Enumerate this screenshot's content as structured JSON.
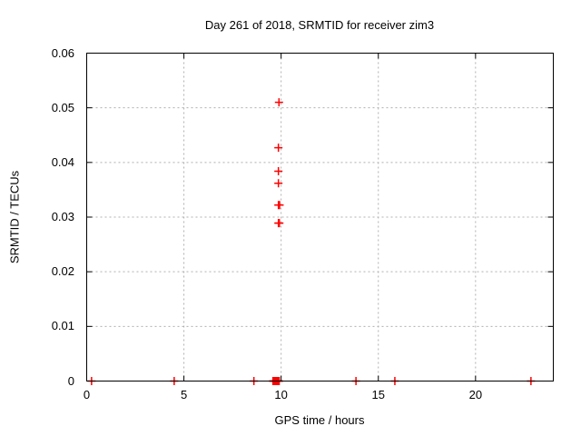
{
  "page": {
    "background": "#ffffff"
  },
  "chart_data": {
    "type": "scatter",
    "title": "Day 261 of 2018, SRMTID for receiver zim3",
    "xlabel": "GPS time / hours",
    "ylabel": "SRMTID / TECUs",
    "xlim": [
      0,
      24
    ],
    "ylim": [
      0,
      0.06
    ],
    "xticks": [
      0,
      5,
      10,
      15,
      20
    ],
    "xtick_labels": [
      "0",
      "5",
      "10",
      "15",
      "20"
    ],
    "yticks": [
      0,
      0.01,
      0.02,
      0.03,
      0.04,
      0.05,
      0.06
    ],
    "ytick_labels": [
      "0",
      "0.01",
      "0.02",
      "0.03",
      "0.04",
      "0.05",
      "0.06"
    ],
    "grid": true,
    "legend": "none",
    "marker": "plus",
    "marker_color": "#ff0000",
    "grid_color": "#b0b0b0",
    "axis_color": "#000000",
    "series": [
      {
        "name": "SRMTID",
        "points": [
          [
            0.25,
            0
          ],
          [
            4.5,
            0
          ],
          [
            8.6,
            0
          ],
          [
            9.58,
            0
          ],
          [
            9.62,
            0
          ],
          [
            9.66,
            0
          ],
          [
            9.7,
            0
          ],
          [
            9.74,
            0
          ],
          [
            9.78,
            0
          ],
          [
            9.82,
            0
          ],
          [
            9.86,
            0
          ],
          [
            9.9,
            0
          ],
          [
            13.85,
            0
          ],
          [
            15.85,
            0
          ],
          [
            22.85,
            0
          ],
          [
            9.89,
            0.051
          ],
          [
            9.86,
            0.0427
          ],
          [
            9.86,
            0.0384
          ],
          [
            9.86,
            0.0362
          ],
          [
            9.86,
            0.0322
          ],
          [
            9.92,
            0.0322
          ],
          [
            9.86,
            0.0289
          ],
          [
            9.91,
            0.0289
          ]
        ]
      }
    ]
  }
}
